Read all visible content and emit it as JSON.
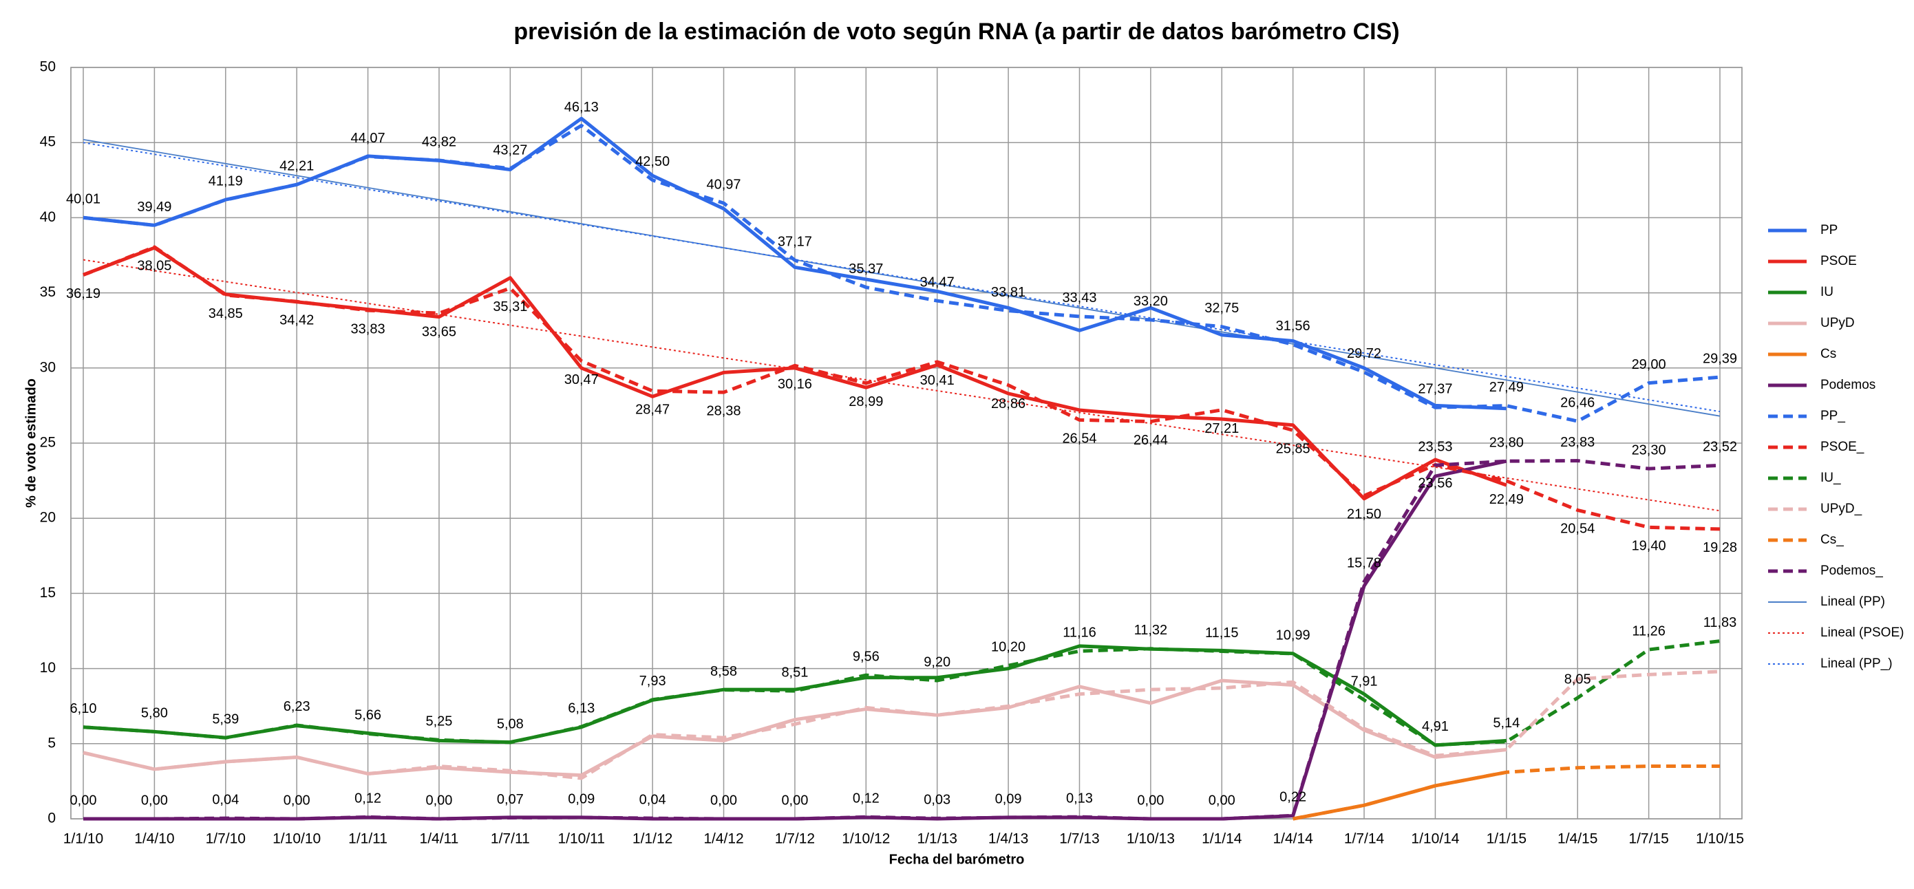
{
  "chart_data": {
    "type": "line",
    "title": "previsión de la estimación de voto según RNA (a partir de datos barómetro CIS)",
    "x_label": "Fecha del barómetro",
    "y_label": "% de voto estimado",
    "categories": [
      "1/1/10",
      "1/4/10",
      "1/7/10",
      "1/10/10",
      "1/1/11",
      "1/4/11",
      "1/7/11",
      "1/10/11",
      "1/1/12",
      "1/4/12",
      "1/7/12",
      "1/10/12",
      "1/1/13",
      "1/4/13",
      "1/7/13",
      "1/10/13",
      "1/1/14",
      "1/4/14",
      "1/7/14",
      "1/10/14",
      "1/1/15",
      "1/4/15",
      "1/7/15",
      "1/10/15"
    ],
    "ylim": [
      0,
      50
    ],
    "yticks": [
      0,
      5,
      10,
      15,
      20,
      25,
      30,
      35,
      40,
      45,
      50
    ],
    "grid": true,
    "legend": "right",
    "series": [
      {
        "name": "PP",
        "color": "#2f6ae8",
        "line_style": "solid",
        "values": [
          40.0,
          39.5,
          41.2,
          42.2,
          44.1,
          43.8,
          43.2,
          46.6,
          42.8,
          40.6,
          36.7,
          35.9,
          35.1,
          34.0,
          32.5,
          34.0,
          32.2,
          31.8,
          30.0,
          27.5,
          27.3,
          null,
          null,
          null
        ]
      },
      {
        "name": "PSOE",
        "color": "#e8251f",
        "line_style": "solid",
        "values": [
          36.2,
          38.0,
          34.9,
          34.4,
          33.9,
          33.4,
          36.0,
          30.0,
          28.1,
          29.7,
          30.0,
          28.7,
          30.2,
          28.3,
          27.2,
          26.8,
          26.6,
          26.2,
          21.3,
          23.9,
          22.2,
          null,
          null,
          null
        ]
      },
      {
        "name": "IU",
        "color": "#1a861a",
        "line_style": "solid",
        "values": [
          6.1,
          5.8,
          5.4,
          6.2,
          5.7,
          5.2,
          5.1,
          6.1,
          7.9,
          8.6,
          8.6,
          9.4,
          9.4,
          10.0,
          11.5,
          11.3,
          11.2,
          11.0,
          8.3,
          4.9,
          5.2,
          null,
          null,
          null
        ]
      },
      {
        "name": "UPyD",
        "color": "#e8b4b4",
        "line_style": "solid",
        "values": [
          4.4,
          3.3,
          3.8,
          4.1,
          3.0,
          3.4,
          3.1,
          2.9,
          5.5,
          5.2,
          6.6,
          7.3,
          6.9,
          7.4,
          8.8,
          7.7,
          9.2,
          8.9,
          5.9,
          4.1,
          4.6,
          null,
          null,
          null
        ]
      },
      {
        "name": "Cs",
        "color": "#f07818",
        "line_style": "solid",
        "values": [
          null,
          null,
          null,
          null,
          null,
          null,
          null,
          null,
          null,
          null,
          null,
          null,
          null,
          null,
          null,
          null,
          null,
          0.0,
          0.9,
          2.2,
          3.1,
          null,
          null,
          null
        ]
      },
      {
        "name": "Podemos",
        "color": "#6a1a6e",
        "line_style": "solid",
        "values": [
          0,
          0,
          0,
          0,
          0.1,
          0,
          0.1,
          0.1,
          0,
          0,
          0,
          0.1,
          0,
          0.1,
          0.1,
          0,
          0,
          0.2,
          15.5,
          22.8,
          23.8,
          null,
          null,
          null
        ]
      },
      {
        "name": "PP_",
        "color": "#2f6ae8",
        "line_style": "dashed",
        "label_position": "above",
        "values": [
          40.01,
          39.49,
          41.19,
          42.21,
          44.07,
          43.82,
          43.27,
          46.13,
          42.5,
          40.97,
          37.17,
          35.37,
          34.47,
          33.81,
          33.43,
          33.2,
          32.75,
          31.56,
          29.72,
          27.37,
          27.49,
          26.46,
          29.0,
          29.39
        ],
        "value_labels": [
          "40,01",
          "39,49",
          "41,19",
          "42,21",
          "44,07",
          "43,82",
          "43,27",
          "46,13",
          "42,50",
          "40,97",
          "37,17",
          "35,37",
          "34,47",
          "33,81",
          "33,43",
          "33,20",
          "32,75",
          "31,56",
          "29,72",
          "27,37",
          "27,49",
          "26,46",
          "29,00",
          "29,39"
        ]
      },
      {
        "name": "PSOE_",
        "color": "#e8251f",
        "line_style": "dashed",
        "label_position": "below",
        "values": [
          36.19,
          38.05,
          34.85,
          34.42,
          33.83,
          33.65,
          35.31,
          30.47,
          28.47,
          28.38,
          30.16,
          28.99,
          30.41,
          28.86,
          26.54,
          26.44,
          27.21,
          25.85,
          21.5,
          23.56,
          22.49,
          20.54,
          19.4,
          19.28
        ],
        "value_labels": [
          "36,19",
          "38,05",
          "34,85",
          "34,42",
          "33,83",
          "33,65",
          "35,31",
          "30,47",
          "28,47",
          "28,38",
          "30,16",
          "28,99",
          "30,41",
          "28,86",
          "26,54",
          "26,44",
          "27,21",
          "25,85",
          "21,50",
          "23,56",
          "22,49",
          "20,54",
          "19,40",
          "19,28"
        ]
      },
      {
        "name": "IU_",
        "color": "#1a861a",
        "line_style": "dashed",
        "label_position": "above",
        "values": [
          6.1,
          5.8,
          5.39,
          6.23,
          5.66,
          5.25,
          5.08,
          6.13,
          7.93,
          8.58,
          8.51,
          9.56,
          9.2,
          10.2,
          11.16,
          11.32,
          11.15,
          10.99,
          7.91,
          4.91,
          5.14,
          8.05,
          11.26,
          11.83
        ],
        "value_labels": [
          "6,10",
          "5,80",
          "5,39",
          "6,23",
          "5,66",
          "5,25",
          "5,08",
          "6,13",
          "7,93",
          "8,58",
          "8,51",
          "9,56",
          "9,20",
          "10,20",
          "11,16",
          "11,32",
          "11,15",
          "10,99",
          "7,91",
          "4,91",
          "5,14",
          "8,05",
          "11,26",
          "11,83"
        ]
      },
      {
        "name": "UPyD_",
        "color": "#e8b4b4",
        "line_style": "dashed",
        "values": [
          4.4,
          3.3,
          3.8,
          4.1,
          3.0,
          3.5,
          3.2,
          2.7,
          5.6,
          5.4,
          6.3,
          7.4,
          6.9,
          7.5,
          8.3,
          8.6,
          8.7,
          9.1,
          6.0,
          4.2,
          4.6,
          9.3,
          9.6,
          9.8
        ]
      },
      {
        "name": "Cs_",
        "color": "#f07818",
        "line_style": "dashed",
        "values": [
          null,
          null,
          null,
          null,
          null,
          null,
          null,
          null,
          null,
          null,
          null,
          null,
          null,
          null,
          null,
          null,
          null,
          0.0,
          0.9,
          2.2,
          3.1,
          3.4,
          3.5,
          3.5
        ]
      },
      {
        "name": "Podemos_",
        "color": "#6a1a6e",
        "line_style": "dashed",
        "label_position": "above",
        "values": [
          0.0,
          0.0,
          0.04,
          0.0,
          0.12,
          0.0,
          0.07,
          0.09,
          0.04,
          0.0,
          0.0,
          0.12,
          0.03,
          0.09,
          0.13,
          0.0,
          0.0,
          0.22,
          15.78,
          23.53,
          23.8,
          23.83,
          23.3,
          23.52
        ],
        "value_labels": [
          "0,00",
          "0,00",
          "0,04",
          "0,00",
          "0,12",
          "0,00",
          "0,07",
          "0,09",
          "0,04",
          "0,00",
          "0,00",
          "0,12",
          "0,03",
          "0,09",
          "0,13",
          "0,00",
          "0,00",
          "0,22",
          "15,78",
          "23,53",
          "23,80",
          "23,83",
          "23,30",
          "23,52"
        ]
      }
    ],
    "trendlines": [
      {
        "name": "Lineal (PP)",
        "color": "#4a7ec8",
        "line_style": "solid",
        "values": [
          45.2,
          26.8
        ]
      },
      {
        "name": "Lineal (PSOE)",
        "color": "#e8251f",
        "line_style": "dotted",
        "values": [
          37.2,
          20.5
        ]
      },
      {
        "name": "Lineal (PP_)",
        "color": "#2f6ae8",
        "line_style": "dotted",
        "values": [
          45.0,
          27.1
        ]
      }
    ]
  }
}
